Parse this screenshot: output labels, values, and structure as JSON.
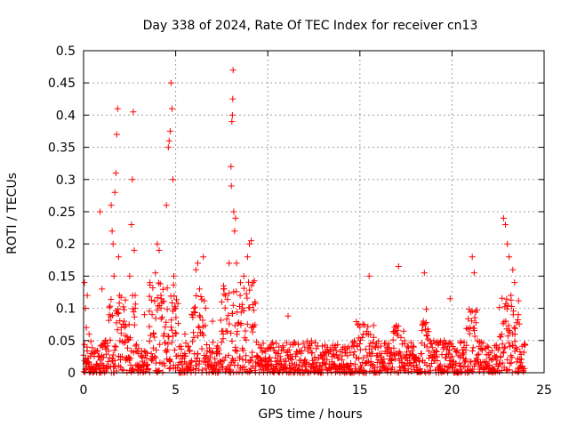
{
  "chart_data": {
    "type": "scatter",
    "title": "Day 338 of 2024, Rate Of TEC Index for receiver cn13",
    "xlabel": "GPS time / hours",
    "ylabel": "ROTI / TECUs",
    "xlim": [
      0,
      25
    ],
    "ylim": [
      0,
      0.5
    ],
    "xticks": [
      0,
      5,
      10,
      15,
      20,
      25
    ],
    "xtick_labels": [
      "0",
      "5",
      "10",
      "15",
      "20",
      "25"
    ],
    "yticks": [
      0,
      0.05,
      0.1,
      0.15,
      0.2,
      0.25,
      0.3,
      0.35,
      0.4,
      0.45,
      0.5
    ],
    "ytick_labels": [
      "0",
      "0.05",
      "0.1",
      "0.15",
      "0.2",
      "0.25",
      "0.3",
      "0.35",
      "0.4",
      "0.45",
      "0.5"
    ],
    "grid": true,
    "marker": "+",
    "color": "#ff0000",
    "series": [
      {
        "name": "ROTI",
        "points": [
          [
            0.05,
            0.14
          ],
          [
            0.1,
            0.1
          ],
          [
            0.15,
            0.07
          ],
          [
            0.2,
            0.12
          ],
          [
            0.3,
            0.06
          ],
          [
            0.4,
            0.03
          ],
          [
            0.9,
            0.25
          ],
          [
            1.0,
            0.13
          ],
          [
            1.2,
            0.05
          ],
          [
            1.4,
            0.09
          ],
          [
            1.5,
            0.26
          ],
          [
            1.55,
            0.22
          ],
          [
            1.6,
            0.2
          ],
          [
            1.65,
            0.15
          ],
          [
            1.7,
            0.28
          ],
          [
            1.75,
            0.31
          ],
          [
            1.8,
            0.37
          ],
          [
            1.85,
            0.41
          ],
          [
            1.9,
            0.18
          ],
          [
            1.95,
            0.12
          ],
          [
            2.2,
            0.08
          ],
          [
            2.5,
            0.15
          ],
          [
            2.6,
            0.23
          ],
          [
            2.65,
            0.3
          ],
          [
            2.7,
            0.405
          ],
          [
            2.75,
            0.19
          ],
          [
            2.8,
            0.12
          ],
          [
            3.3,
            0.09
          ],
          [
            3.6,
            0.14
          ],
          [
            3.9,
            0.155
          ],
          [
            4.0,
            0.2
          ],
          [
            4.1,
            0.19
          ],
          [
            4.2,
            0.12
          ],
          [
            4.5,
            0.26
          ],
          [
            4.6,
            0.35
          ],
          [
            4.65,
            0.36
          ],
          [
            4.7,
            0.375
          ],
          [
            4.75,
            0.45
          ],
          [
            4.8,
            0.41
          ],
          [
            4.85,
            0.3
          ],
          [
            4.9,
            0.15
          ],
          [
            5.0,
            0.1
          ],
          [
            5.5,
            0.06
          ],
          [
            6.0,
            0.1
          ],
          [
            6.1,
            0.16
          ],
          [
            6.2,
            0.17
          ],
          [
            6.3,
            0.13
          ],
          [
            6.5,
            0.18
          ],
          [
            7.0,
            0.08
          ],
          [
            7.5,
            0.11
          ],
          [
            7.6,
            0.13
          ],
          [
            7.7,
            0.12
          ],
          [
            7.9,
            0.17
          ],
          [
            8.0,
            0.32
          ],
          [
            8.02,
            0.29
          ],
          [
            8.05,
            0.39
          ],
          [
            8.08,
            0.4
          ],
          [
            8.1,
            0.425
          ],
          [
            8.12,
            0.47
          ],
          [
            8.15,
            0.25
          ],
          [
            8.2,
            0.22
          ],
          [
            8.25,
            0.24
          ],
          [
            8.3,
            0.17
          ],
          [
            8.5,
            0.12
          ],
          [
            8.7,
            0.15
          ],
          [
            8.9,
            0.18
          ],
          [
            9.0,
            0.2
          ],
          [
            9.1,
            0.205
          ],
          [
            9.2,
            0.14
          ],
          [
            9.3,
            0.11
          ],
          [
            11.1,
            0.088
          ],
          [
            15.5,
            0.15
          ],
          [
            17.1,
            0.165
          ],
          [
            18.5,
            0.155
          ],
          [
            19.9,
            0.115
          ],
          [
            21.1,
            0.18
          ],
          [
            21.2,
            0.155
          ],
          [
            22.8,
            0.24
          ],
          [
            22.9,
            0.23
          ],
          [
            23.0,
            0.2
          ],
          [
            23.1,
            0.18
          ],
          [
            23.2,
            0.12
          ],
          [
            23.3,
            0.16
          ],
          [
            23.4,
            0.14
          ],
          [
            23.6,
            0.09
          ]
        ],
        "baseline": {
          "x_start": 0,
          "x_end": 24,
          "x_step": 0.05,
          "low_range": [
            0.0,
            0.05
          ],
          "active_windows": [
            {
              "x": [
                1.4,
                2.8
              ],
              "range": [
                0.0,
                0.12
              ]
            },
            {
              "x": [
                3.5,
                5.2
              ],
              "range": [
                0.0,
                0.14
              ]
            },
            {
              "x": [
                5.8,
                6.6
              ],
              "range": [
                0.0,
                0.12
              ]
            },
            {
              "x": [
                7.4,
                9.3
              ],
              "range": [
                0.0,
                0.15
              ]
            },
            {
              "x": [
                14.8,
                15.8
              ],
              "range": [
                0.0,
                0.08
              ]
            },
            {
              "x": [
                16.8,
                17.4
              ],
              "range": [
                0.0,
                0.09
              ]
            },
            {
              "x": [
                18.3,
                18.8
              ],
              "range": [
                0.0,
                0.1
              ]
            },
            {
              "x": [
                20.8,
                21.4
              ],
              "range": [
                0.0,
                0.1
              ]
            },
            {
              "x": [
                22.6,
                23.7
              ],
              "range": [
                0.0,
                0.12
              ]
            }
          ]
        }
      }
    ]
  }
}
